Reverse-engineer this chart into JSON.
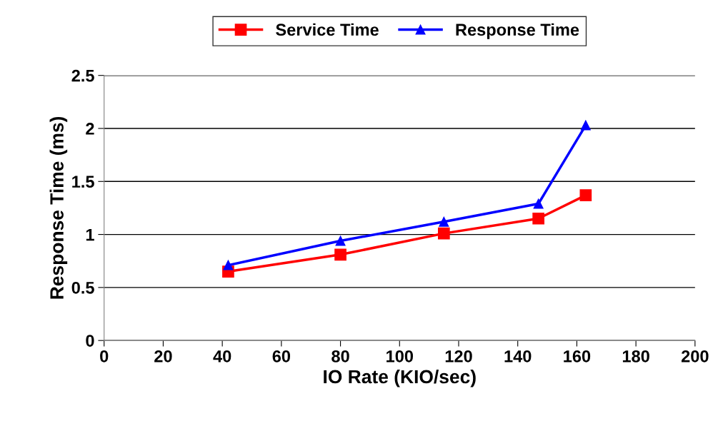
{
  "chart_data": {
    "type": "line",
    "xlabel": "IO Rate (KIO/sec)",
    "ylabel": "Response Time (ms)",
    "xlim": [
      0,
      200
    ],
    "xticks": [
      0,
      20,
      40,
      60,
      80,
      100,
      120,
      140,
      160,
      180,
      200
    ],
    "ylim": [
      0,
      2.5
    ],
    "yticks": [
      0,
      0.5,
      1,
      1.5,
      2,
      2.5
    ],
    "grid": "y",
    "legend": "top",
    "line_style": "solid",
    "series": [
      {
        "name": "Service Time",
        "color": "#ff0000",
        "marker": "square",
        "x": [
          42,
          80,
          115,
          147,
          163
        ],
        "values": [
          0.65,
          0.81,
          1.01,
          1.15,
          1.37
        ]
      },
      {
        "name": "Response Time",
        "color": "#0000ff",
        "marker": "triangle",
        "x": [
          42,
          80,
          115,
          147,
          163
        ],
        "values": [
          0.71,
          0.94,
          1.12,
          1.29,
          2.03
        ]
      }
    ]
  }
}
